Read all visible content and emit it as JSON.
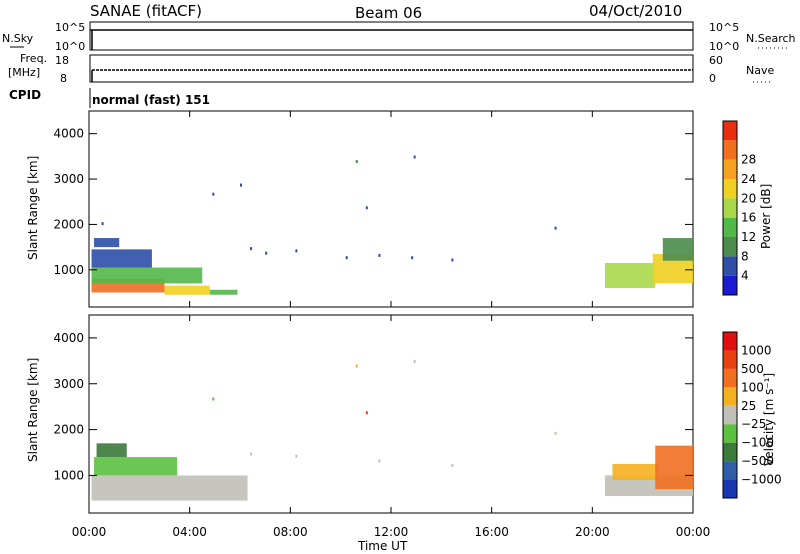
{
  "header": {
    "station": "SANAE (fitACF)",
    "beam": "Beam 06",
    "date": "04/Oct/2010"
  },
  "aux_panels": {
    "nsky_label": "N.Sky",
    "nsearch_label": "N.Search",
    "nsky_ticks": [
      "10^5",
      "10^0"
    ],
    "nsearch_ticks": [
      "10^5",
      "10^0"
    ],
    "freq_label": "Freq.",
    "freq_unit": "[MHz]",
    "freq_ticks": [
      "18",
      "8"
    ],
    "nave_label": "Nave",
    "nave_ticks": [
      "60",
      "0"
    ],
    "cpid_label": "CPID",
    "cpid_text": "normal (fast) 151"
  },
  "colors": {
    "power": [
      "#1a1ad2",
      "#2e4fa8",
      "#4d8c4d",
      "#52b84a",
      "#a8d84a",
      "#f0d020",
      "#f5a020",
      "#f07020",
      "#e83010"
    ],
    "velocity": [
      "#1a36b0",
      "#2e5fa8",
      "#3a7a3a",
      "#5cc040",
      "#c0c0b8",
      "#f5b020",
      "#f07020",
      "#e84010",
      "#e01010"
    ]
  },
  "chart_data": [
    {
      "type": "heatmap",
      "name": "power",
      "xlabel": "Time UT",
      "ylabel": "Slant Range [km]",
      "x_ticks": [
        "00:00",
        "04:00",
        "08:00",
        "12:00",
        "16:00",
        "20:00",
        "00:00"
      ],
      "xlim_hours": [
        0,
        24
      ],
      "y_ticks": [
        1000,
        2000,
        3000,
        4000
      ],
      "ylim_km": [
        180,
        4500
      ],
      "colorbar_label": "Power [dB]",
      "colorbar_ticks": [
        "4",
        "8",
        "12",
        "16",
        "20",
        "24",
        "28"
      ],
      "colorbar_range": [
        0,
        30
      ],
      "regions": [
        {
          "t0": 0.1,
          "t1": 3.0,
          "r0": 500,
          "r1": 800,
          "level": 26
        },
        {
          "t0": 0.1,
          "t1": 4.5,
          "r0": 700,
          "r1": 1050,
          "level": 12
        },
        {
          "t0": 0.1,
          "t1": 2.5,
          "r0": 1050,
          "r1": 1450,
          "level": 6
        },
        {
          "t0": 0.2,
          "t1": 1.2,
          "r0": 1500,
          "r1": 1700,
          "level": 4
        },
        {
          "t0": 3.0,
          "t1": 4.8,
          "r0": 450,
          "r1": 650,
          "level": 18
        },
        {
          "t0": 4.8,
          "t1": 5.9,
          "r0": 450,
          "r1": 560,
          "level": 10
        },
        {
          "t0": 20.5,
          "t1": 22.5,
          "r0": 600,
          "r1": 1150,
          "level": 14
        },
        {
          "t0": 22.4,
          "t1": 24.0,
          "r0": 700,
          "r1": 1350,
          "level": 18
        },
        {
          "t0": 22.8,
          "t1": 24.0,
          "r0": 1200,
          "r1": 1700,
          "level": 8
        }
      ],
      "sparse": [
        {
          "t": 6.4,
          "r": 1500,
          "level": 5
        },
        {
          "t": 7.0,
          "r": 1400,
          "level": 6
        },
        {
          "t": 8.2,
          "r": 1450,
          "level": 5
        },
        {
          "t": 10.2,
          "r": 1300,
          "level": 4
        },
        {
          "t": 11.5,
          "r": 1350,
          "level": 6
        },
        {
          "t": 12.8,
          "r": 1300,
          "level": 4
        },
        {
          "t": 14.4,
          "r": 1250,
          "level": 5
        },
        {
          "t": 10.6,
          "r": 3420,
          "level": 7
        },
        {
          "t": 12.9,
          "r": 3520,
          "level": 5
        },
        {
          "t": 4.9,
          "r": 2700,
          "level": 4
        },
        {
          "t": 6.0,
          "r": 2900,
          "level": 6
        },
        {
          "t": 11.0,
          "r": 2400,
          "level": 5
        },
        {
          "t": 18.5,
          "r": 1950,
          "level": 4
        },
        {
          "t": 0.5,
          "r": 2050,
          "level": 4
        }
      ]
    },
    {
      "type": "heatmap",
      "name": "velocity",
      "xlabel": "Time UT",
      "ylabel": "Slant Range [km]",
      "x_ticks": [
        "00:00",
        "04:00",
        "08:00",
        "12:00",
        "16:00",
        "20:00",
        "00:00"
      ],
      "xlim_hours": [
        0,
        24
      ],
      "y_ticks": [
        1000,
        2000,
        3000,
        4000
      ],
      "ylim_km": [
        180,
        4500
      ],
      "colorbar_label": "Velocity [m s⁻¹]",
      "colorbar_ticks": [
        "1000",
        "500",
        "100",
        "25",
        "−25",
        "−100",
        "−500",
        "−1000"
      ],
      "regions": [
        {
          "t0": 0.1,
          "t1": 6.3,
          "r0": 450,
          "r1": 1000,
          "level": 4
        },
        {
          "t0": 0.2,
          "t1": 3.5,
          "r0": 1000,
          "r1": 1400,
          "level": 3
        },
        {
          "t0": 0.3,
          "t1": 1.5,
          "r0": 1400,
          "r1": 1700,
          "level": 2
        },
        {
          "t0": 20.5,
          "t1": 24.0,
          "r0": 550,
          "r1": 1000,
          "level": 4
        },
        {
          "t0": 20.8,
          "t1": 22.6,
          "r0": 900,
          "r1": 1250,
          "level": 5
        },
        {
          "t0": 22.5,
          "t1": 24.0,
          "r0": 700,
          "r1": 1650,
          "level": 6
        }
      ],
      "sparse": [
        {
          "t": 6.4,
          "r": 1500,
          "level": 4
        },
        {
          "t": 8.2,
          "r": 1450,
          "level": 4
        },
        {
          "t": 11.5,
          "r": 1350,
          "level": 4
        },
        {
          "t": 14.4,
          "r": 1250,
          "level": 4
        },
        {
          "t": 10.6,
          "r": 3420,
          "level": 5
        },
        {
          "t": 12.9,
          "r": 3520,
          "level": 4
        },
        {
          "t": 4.9,
          "r": 2700,
          "level": 3
        },
        {
          "t": 11.0,
          "r": 2400,
          "level": 7
        },
        {
          "t": 18.5,
          "r": 1950,
          "level": 4
        }
      ]
    }
  ]
}
